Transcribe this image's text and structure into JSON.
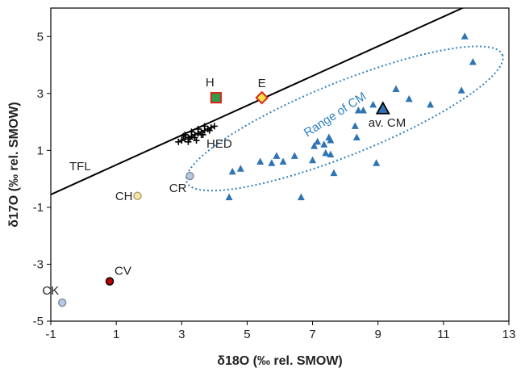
{
  "chart_data": {
    "type": "scatter",
    "xlabel": "δ18O (‰ rel. SMOW)",
    "ylabel": "δ17O (‰ rel. SMOW)",
    "xlim": [
      -1,
      13
    ],
    "ylim": [
      -5,
      6
    ],
    "x_ticks": [
      "-1",
      "1",
      "3",
      "5",
      "7",
      "9",
      "11",
      "13"
    ],
    "y_ticks": [
      "-5",
      "-3",
      "-1",
      "1",
      "3",
      "5"
    ],
    "grid": false,
    "tfl": {
      "label": "TFL",
      "x": [
        -1,
        13
      ],
      "y": [
        -0.55,
        6.74
      ]
    },
    "cm_range_label": "Range of CM",
    "cm_ellipse": {
      "cx": 7.98,
      "cy": 2.12,
      "rx": 5.2,
      "ry": 1.28,
      "angle_deg": 22,
      "color": "#2E7FC0"
    },
    "hed_cluster": {
      "label": "HED",
      "x": [
        2.9,
        3.0,
        3.1,
        3.2,
        3.3,
        3.4,
        3.5,
        3.6,
        3.7,
        3.8,
        3.9,
        4.0,
        3.1,
        3.3,
        3.5,
        3.7,
        3.2,
        3.4,
        3.6,
        3.05,
        3.25,
        3.45,
        3.65,
        3.85
      ],
      "y": [
        1.3,
        1.35,
        1.4,
        1.45,
        1.5,
        1.55,
        1.6,
        1.65,
        1.7,
        1.75,
        1.8,
        1.85,
        1.55,
        1.65,
        1.75,
        1.85,
        1.3,
        1.45,
        1.55,
        1.5,
        1.4,
        1.35,
        1.55,
        1.7
      ],
      "color": "#000000"
    },
    "groups": [
      {
        "label": "H",
        "marker": "square",
        "x": 4.05,
        "y": 2.85,
        "fill": "#2E9E4A",
        "stroke": "#D62A1E"
      },
      {
        "label": "E",
        "marker": "diamond",
        "x": 5.45,
        "y": 2.85,
        "fill": "#F5E04A",
        "stroke": "#D62A1E"
      },
      {
        "label": "CR",
        "marker": "circle",
        "x": 3.25,
        "y": 0.1,
        "fill": "#B8C8DE",
        "stroke": "#7F8FA6"
      },
      {
        "label": "CH",
        "marker": "circle",
        "x": 1.65,
        "y": -0.6,
        "fill": "#F5E8A6",
        "stroke": "#B0A070"
      },
      {
        "label": "CV",
        "marker": "circle",
        "x": 0.8,
        "y": -3.6,
        "fill": "#C00000",
        "stroke": "#000000"
      },
      {
        "label": "CK",
        "marker": "circle",
        "x": -0.65,
        "y": -4.35,
        "fill": "#B8C8DE",
        "stroke": "#7F8FA6"
      },
      {
        "label": "av. CM",
        "marker": "triangle-large",
        "x": 9.15,
        "y": 2.45,
        "fill": "#2F75B5",
        "stroke": "#000000"
      }
    ],
    "cm_points": {
      "color": "#2F75B5",
      "x": [
        4.45,
        4.55,
        4.8,
        5.4,
        5.75,
        5.9,
        6.1,
        6.45,
        6.65,
        7.0,
        7.05,
        7.15,
        7.35,
        7.4,
        7.5,
        7.55,
        7.55,
        7.65,
        8.3,
        8.35,
        8.4,
        8.55,
        8.85,
        8.95,
        9.55,
        9.95,
        10.6,
        11.55,
        11.65,
        11.9
      ],
      "y": [
        -0.65,
        0.25,
        0.35,
        0.6,
        0.55,
        0.8,
        0.6,
        0.8,
        -0.65,
        0.65,
        1.15,
        1.3,
        1.2,
        0.9,
        1.45,
        1.35,
        0.85,
        0.2,
        1.85,
        1.45,
        2.4,
        2.4,
        2.6,
        0.55,
        3.15,
        2.8,
        2.6,
        3.1,
        5.0,
        4.1
      ]
    }
  }
}
